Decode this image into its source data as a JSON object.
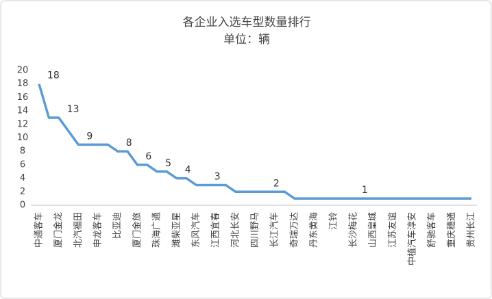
{
  "chart_data": {
    "type": "line",
    "title": "各企业入选车型数量排行",
    "subtitle": "单位：辆",
    "categories": [
      "中通客车",
      null,
      "厦门金龙",
      null,
      "北汽福田",
      null,
      "申龙客车",
      null,
      "比亚迪",
      null,
      "厦门金旅",
      null,
      "珠海广通",
      null,
      "潍柴亚星",
      null,
      "东风汽车",
      null,
      "江西宜春",
      null,
      "河北长安",
      null,
      "四川野马",
      null,
      "长江汽车",
      null,
      "奇瑞万达",
      null,
      "丹东黄海",
      null,
      "江铃",
      null,
      "长沙梅花",
      null,
      "山西皇城",
      null,
      "江苏友谊",
      null,
      "中植汽车淳安",
      null,
      "舒驰客车",
      null,
      "重庆穗通",
      null,
      "贵州长江"
    ],
    "series": [
      {
        "color": "#5b9bd5",
        "values": [
          18,
          13,
          13,
          11,
          9,
          9,
          9,
          9,
          8,
          8,
          6,
          6,
          5,
          5,
          4,
          4,
          3,
          3,
          3,
          3,
          2,
          2,
          2,
          2,
          2,
          2,
          1,
          1,
          1,
          1,
          1,
          1,
          1,
          1,
          1,
          1,
          1,
          1,
          1,
          1,
          1,
          1,
          1,
          1,
          1
        ],
        "value_labels": [
          "18",
          null,
          "13",
          null,
          "9",
          null,
          null,
          null,
          "8",
          null,
          "6",
          null,
          "5",
          null,
          "4",
          null,
          null,
          "3",
          null,
          null,
          null,
          null,
          null,
          "2",
          null,
          null,
          null,
          null,
          null,
          null,
          null,
          null,
          "1",
          null,
          null,
          null,
          null,
          null,
          null,
          null,
          null,
          null,
          null,
          null,
          null
        ]
      }
    ],
    "ylim": [
      0,
      20
    ],
    "yticks": [
      0,
      2,
      4,
      6,
      8,
      10,
      12,
      14,
      16,
      18,
      20
    ],
    "grid": false
  }
}
